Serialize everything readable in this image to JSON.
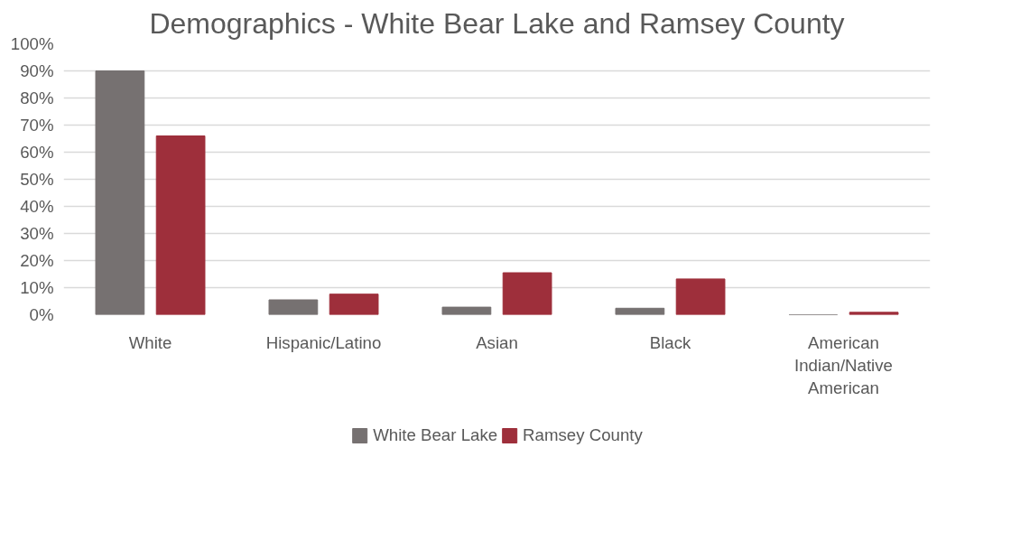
{
  "chart_data": {
    "type": "bar",
    "title": "Demographics - White Bear Lake and Ramsey County",
    "categories": [
      "White",
      "Hispanic/Latino",
      "Asian",
      "Black",
      "American Indian/Native American"
    ],
    "series": [
      {
        "name": "White Bear Lake",
        "color": "#767171",
        "values": [
          90,
          5.5,
          2.8,
          2.4,
          0
        ]
      },
      {
        "name": "Ramsey County",
        "color": "#9e2f3b",
        "values": [
          66,
          7.6,
          15.5,
          13.2,
          0.9
        ]
      }
    ],
    "ylim": [
      0,
      100
    ],
    "yticks": [
      {
        "value": 0,
        "label": "0%"
      },
      {
        "value": 10,
        "label": "10%"
      },
      {
        "value": 20,
        "label": "20%"
      },
      {
        "value": 30,
        "label": "30%"
      },
      {
        "value": 40,
        "label": "40%"
      },
      {
        "value": 50,
        "label": "50%"
      },
      {
        "value": 60,
        "label": "60%"
      },
      {
        "value": 70,
        "label": "70%"
      },
      {
        "value": 80,
        "label": "80%"
      },
      {
        "value": 90,
        "label": "90%"
      },
      {
        "value": 100,
        "label": "100%"
      }
    ],
    "grid": "y",
    "legend": "bottom"
  }
}
